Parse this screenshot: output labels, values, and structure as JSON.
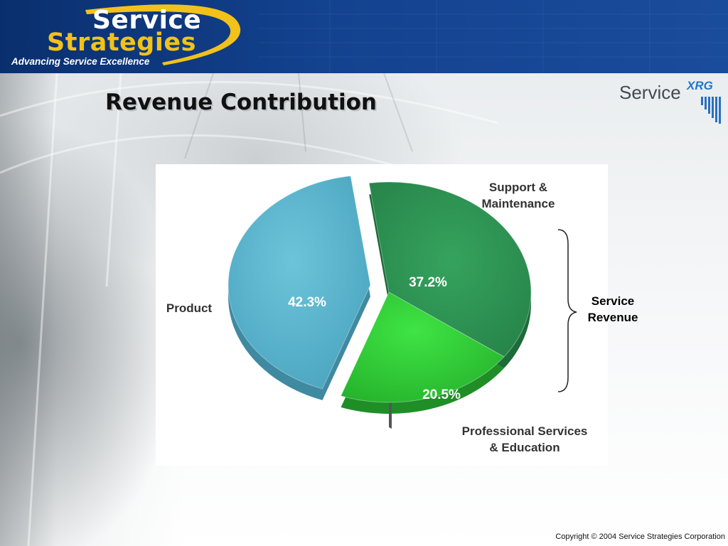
{
  "header": {
    "logo_line1": "Service",
    "logo_line2": "Strategies",
    "tagline": "Advancing Service Excellence",
    "colors": {
      "bar": "#13428f",
      "accent": "#f2c21a"
    }
  },
  "title": "Revenue Contribution",
  "corner_logo": {
    "word": "Service",
    "sup": "XRG"
  },
  "chart_data": {
    "type": "pie",
    "title": "",
    "slices": [
      {
        "name": "Product",
        "value": 42.3,
        "label": "42.3%",
        "color": "#5bb3ca",
        "exploded": true
      },
      {
        "name": "Support & Maintenance",
        "value": 37.2,
        "label": "37.2%",
        "color": "#2e9454",
        "exploded": false
      },
      {
        "name": "Professional Services & Education",
        "value": 20.5,
        "label": "20.5%",
        "color": "#33d23c",
        "exploded": false
      }
    ],
    "category_labels": {
      "product": "Product",
      "support": [
        "Support &",
        "Maintenance"
      ],
      "professional": [
        "Professional Services",
        "& Education"
      ]
    },
    "annotation": "Service Revenue"
  },
  "footer": {
    "copyright": "Copyright © 2004 Service Strategies Corporation"
  }
}
